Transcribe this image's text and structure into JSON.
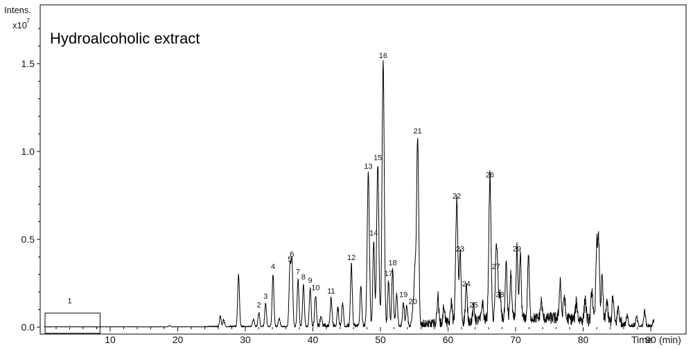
{
  "chart_data": {
    "type": "line",
    "title": "Hydroalcoholic extract",
    "ylabel": "Intens.",
    "yunit_prefix": "x10",
    "yunit_exponent": "7",
    "xlabel": "Time",
    "xunit": "(min)",
    "xlim": [
      0,
      91
    ],
    "ylim": [
      0,
      1.8
    ],
    "x_ticks": [
      "10",
      "20",
      "30",
      "40",
      "50",
      "60",
      "70",
      "80",
      "90"
    ],
    "y_ticks": [
      "0.0",
      "0.5",
      "1.0",
      "1.5"
    ],
    "line_color": "#000000",
    "peaks": [
      {
        "label": "1",
        "x": 4.0,
        "y": 0.005
      },
      {
        "label": "2",
        "x": 32.0,
        "y": 0.08
      },
      {
        "label": "3",
        "x": 33.0,
        "y": 0.13
      },
      {
        "label": "4",
        "x": 34.1,
        "y": 0.3
      },
      {
        "label": "5",
        "x": 36.6,
        "y": 0.34
      },
      {
        "label": "6",
        "x": 36.9,
        "y": 0.37
      },
      {
        "label": "7",
        "x": 37.8,
        "y": 0.27
      },
      {
        "label": "8",
        "x": 38.6,
        "y": 0.24
      },
      {
        "label": "9",
        "x": 39.6,
        "y": 0.22
      },
      {
        "label": "10",
        "x": 40.4,
        "y": 0.18
      },
      {
        "label": "11",
        "x": 42.7,
        "y": 0.16
      },
      {
        "label": "12",
        "x": 45.7,
        "y": 0.35
      },
      {
        "label": "13",
        "x": 48.2,
        "y": 0.87
      },
      {
        "label": "14",
        "x": 49.0,
        "y": 0.49
      },
      {
        "label": "15",
        "x": 49.6,
        "y": 0.92
      },
      {
        "label": "16",
        "x": 50.4,
        "y": 1.5
      },
      {
        "label": "17",
        "x": 51.2,
        "y": 0.26
      },
      {
        "label": "18",
        "x": 51.8,
        "y": 0.32
      },
      {
        "label": "19",
        "x": 53.4,
        "y": 0.14
      },
      {
        "label": "20",
        "x": 54.8,
        "y": 0.1
      },
      {
        "label": "21",
        "x": 55.5,
        "y": 1.07
      },
      {
        "label": "22",
        "x": 61.3,
        "y": 0.7
      },
      {
        "label": "23",
        "x": 61.8,
        "y": 0.4
      },
      {
        "label": "24",
        "x": 62.7,
        "y": 0.2
      },
      {
        "label": "25",
        "x": 63.8,
        "y": 0.08
      },
      {
        "label": "26",
        "x": 66.2,
        "y": 0.82
      },
      {
        "label": "27",
        "x": 67.1,
        "y": 0.3
      },
      {
        "label": "28",
        "x": 67.7,
        "y": 0.14
      },
      {
        "label": "29",
        "x": 70.2,
        "y": 0.4
      }
    ],
    "minor_peaks": [
      {
        "x": 18.8,
        "y": 0.01
      },
      {
        "x": 26.3,
        "y": 0.06
      },
      {
        "x": 26.8,
        "y": 0.04
      },
      {
        "x": 29.0,
        "y": 0.3
      },
      {
        "x": 31.2,
        "y": 0.04
      },
      {
        "x": 35.0,
        "y": 0.05
      },
      {
        "x": 41.2,
        "y": 0.06
      },
      {
        "x": 43.7,
        "y": 0.1
      },
      {
        "x": 44.4,
        "y": 0.13
      },
      {
        "x": 47.1,
        "y": 0.22
      },
      {
        "x": 52.4,
        "y": 0.18
      },
      {
        "x": 53.9,
        "y": 0.12
      },
      {
        "x": 55.1,
        "y": 0.3
      },
      {
        "x": 58.5,
        "y": 0.16
      },
      {
        "x": 59.4,
        "y": 0.1
      },
      {
        "x": 60.5,
        "y": 0.12
      },
      {
        "x": 65.1,
        "y": 0.1
      },
      {
        "x": 67.3,
        "y": 0.28
      },
      {
        "x": 68.6,
        "y": 0.32
      },
      {
        "x": 69.3,
        "y": 0.25
      },
      {
        "x": 70.7,
        "y": 0.36
      },
      {
        "x": 71.9,
        "y": 0.36
      },
      {
        "x": 73.8,
        "y": 0.1
      },
      {
        "x": 76.6,
        "y": 0.22
      },
      {
        "x": 77.2,
        "y": 0.13
      },
      {
        "x": 79.0,
        "y": 0.1
      },
      {
        "x": 80.3,
        "y": 0.12
      },
      {
        "x": 81.3,
        "y": 0.18
      },
      {
        "x": 82.0,
        "y": 0.42
      },
      {
        "x": 82.3,
        "y": 0.44
      },
      {
        "x": 82.8,
        "y": 0.25
      },
      {
        "x": 83.5,
        "y": 0.12
      },
      {
        "x": 84.4,
        "y": 0.14
      },
      {
        "x": 85.2,
        "y": 0.09
      },
      {
        "x": 86.5,
        "y": 0.06
      },
      {
        "x": 87.9,
        "y": 0.05
      },
      {
        "x": 89.1,
        "y": 0.09
      },
      {
        "x": 90.5,
        "y": 0.04
      }
    ],
    "annotation_box": {
      "x_range": [
        0,
        8.5
      ],
      "y_range": [
        -0.035,
        0.08
      ]
    },
    "grid": false,
    "legend": "none"
  }
}
